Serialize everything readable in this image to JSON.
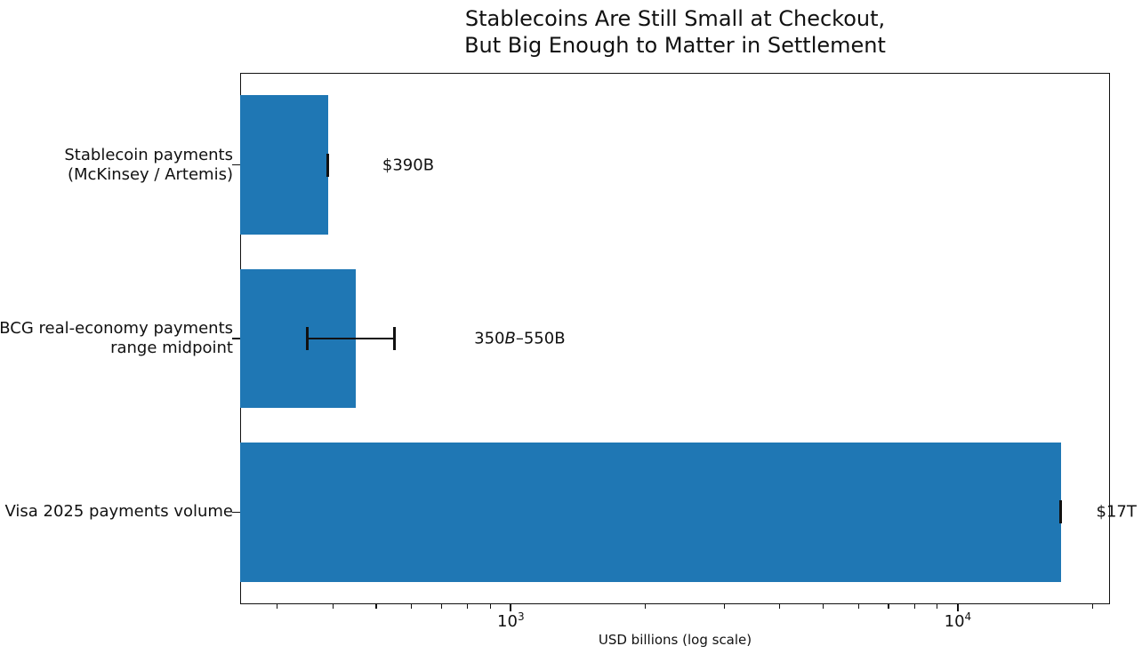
{
  "figure": {
    "title_lines": [
      "Stablecoins Are Still Small at Checkout,",
      "But Big Enough to Matter in Settlement"
    ],
    "xlabel": "USD billions (log scale)"
  },
  "chart_data": {
    "type": "bar",
    "orientation": "horizontal",
    "title": "Stablecoins Are Still Small at Checkout, But Big Enough to Matter in Settlement",
    "xlabel": "USD billions (log scale)",
    "x_scale": "log",
    "xlim": [
      248,
      21900
    ],
    "grid": false,
    "legend": null,
    "bar_color": "#1f77b4",
    "axis_color": "#111111",
    "bar_height_frac": 0.8,
    "categories": [
      "Stablecoin payments (McKinsey / Artemis)",
      "BCG real-economy payments range midpoint",
      "Visa 2025 payments volume"
    ],
    "bars": [
      {
        "label_lines": [
          "Stablecoin payments",
          "(McKinsey / Artemis)"
        ],
        "value": 390,
        "err": [
          390,
          390
        ],
        "annotation": "$390B",
        "annotation_runs": [
          {
            "t": "$390B",
            "i": false
          }
        ],
        "annotation_at": 516
      },
      {
        "label_lines": [
          "BCG real-economy payments",
          "range midpoint"
        ],
        "value": 450,
        "err": [
          350,
          550
        ],
        "annotation": "350B–550B",
        "annotation_runs": [
          {
            "t": "350",
            "i": false
          },
          {
            "t": "B",
            "i": true
          },
          {
            "t": "–550B",
            "i": false
          }
        ],
        "annotation_at": 828
      },
      {
        "label_lines": [
          "Visa 2025 payments volume"
        ],
        "value": 17000,
        "err": [
          17000,
          17000
        ],
        "annotation": "$17T",
        "annotation_runs": [
          {
            "t": "$17T",
            "i": false
          }
        ],
        "annotation_at": 20400
      }
    ],
    "x_major_ticks": [
      {
        "value": 1000,
        "label_base": "10",
        "label_exp": "3"
      },
      {
        "value": 10000,
        "label_base": "10",
        "label_exp": "4"
      }
    ],
    "x_minor_ticks": [
      300,
      400,
      500,
      600,
      700,
      800,
      900,
      2000,
      3000,
      4000,
      5000,
      6000,
      7000,
      8000,
      9000,
      20000
    ]
  }
}
